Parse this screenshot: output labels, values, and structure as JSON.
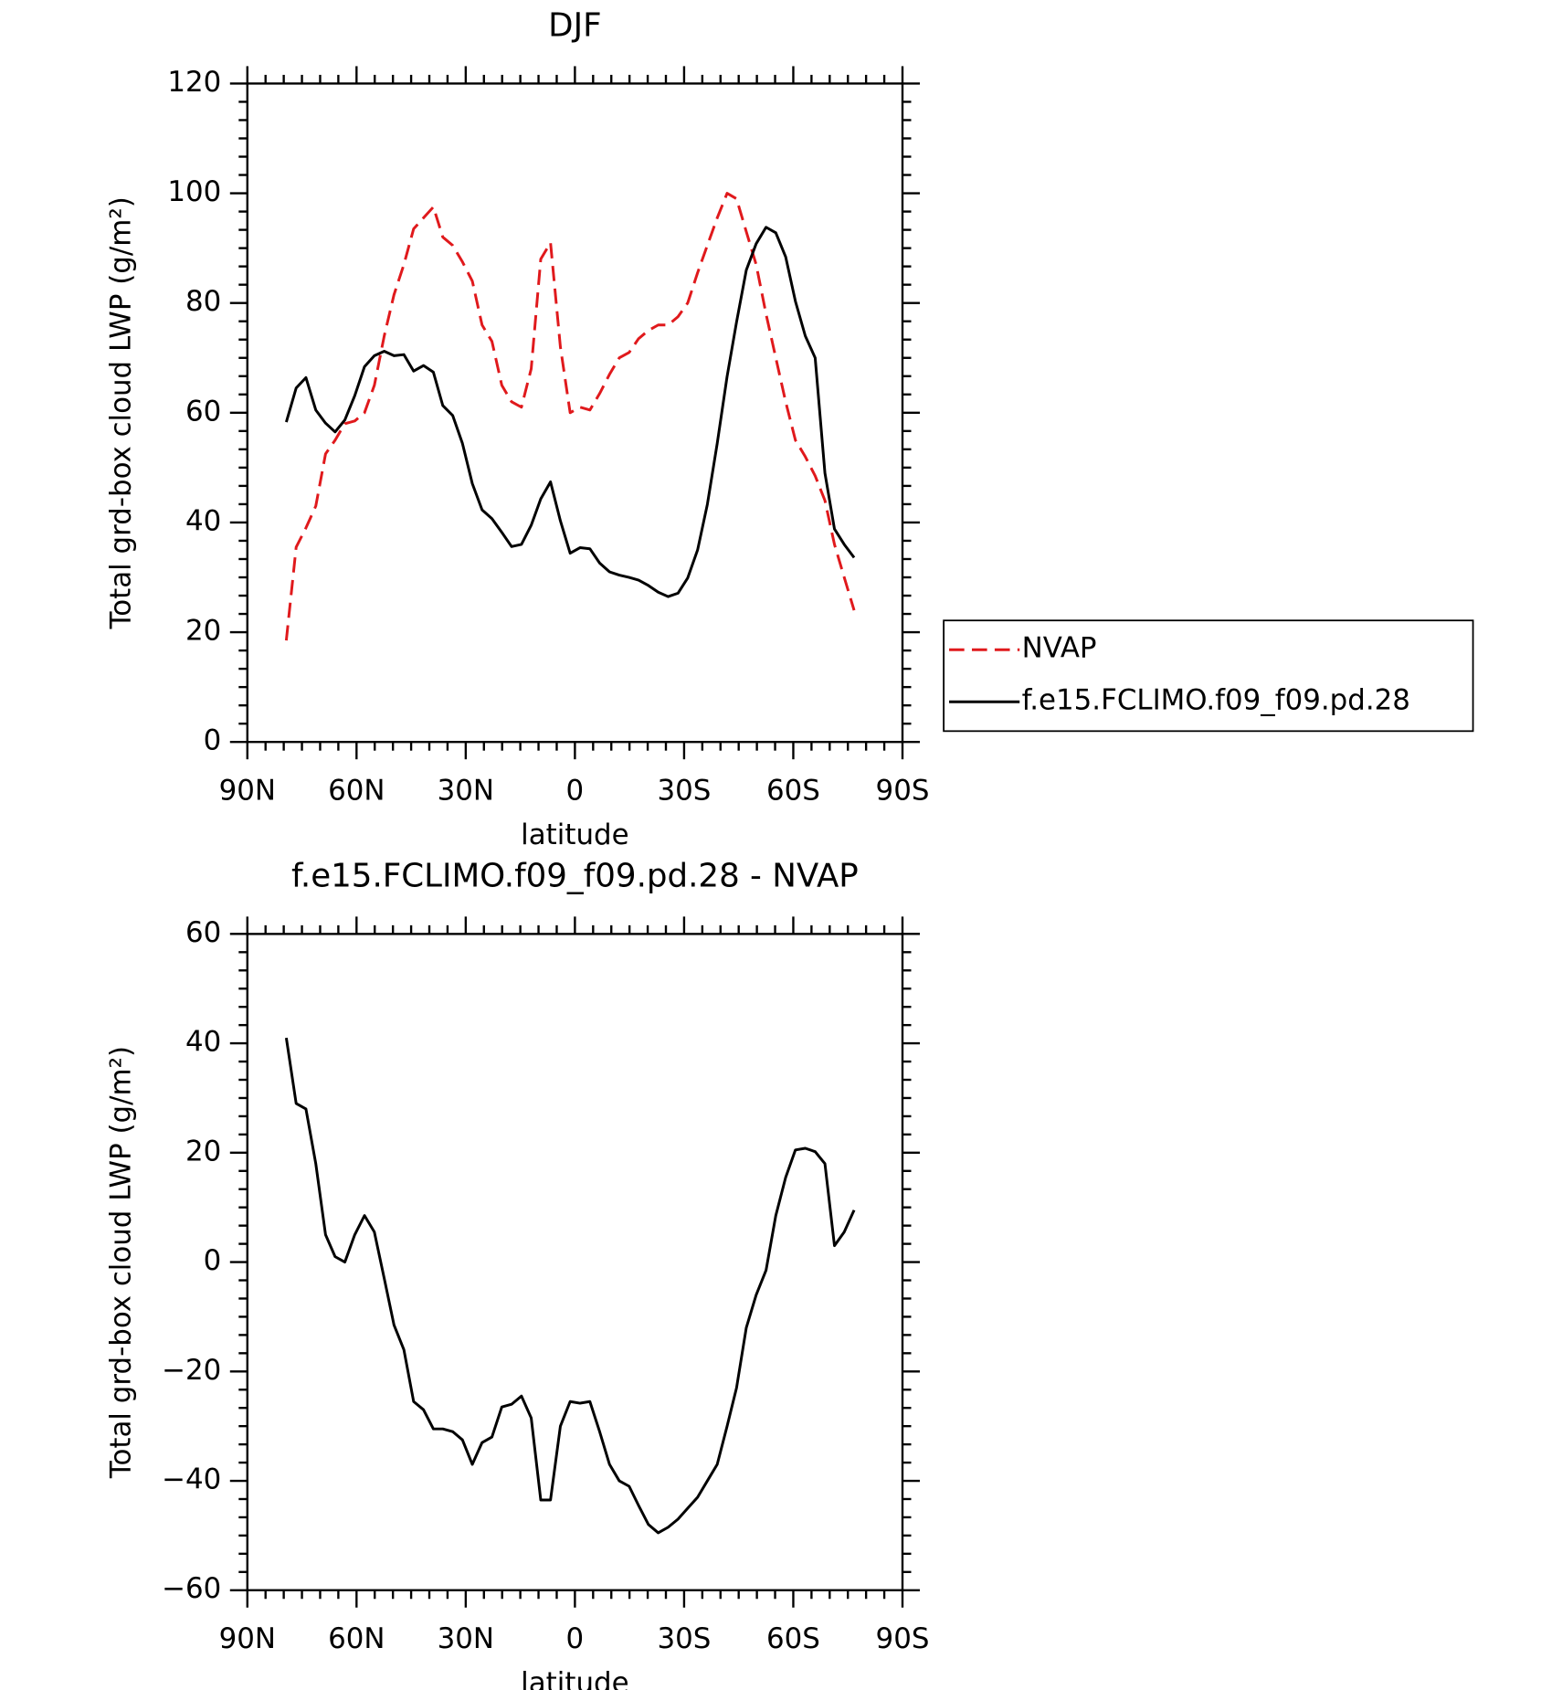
{
  "chart_data": [
    {
      "type": "line",
      "title": "DJF",
      "xlabel": "latitude",
      "ylabel": "Total grd-box cloud LWP (g/m²)",
      "xlim": [
        90,
        -90
      ],
      "ylim": [
        0,
        120
      ],
      "xticks": [
        {
          "value": 90,
          "label": "90N"
        },
        {
          "value": 60,
          "label": "60N"
        },
        {
          "value": 30,
          "label": "30N"
        },
        0,
        {
          "value": -30,
          "label": "30S"
        },
        {
          "value": -60,
          "label": "60S"
        },
        {
          "value": -90,
          "label": "90S"
        }
      ],
      "yticks": [
        0,
        20,
        40,
        60,
        80,
        100,
        120
      ],
      "legend": "outside right",
      "x": [
        79.3,
        76.6,
        73.9,
        71.2,
        68.5,
        65.9,
        63.2,
        60.5,
        57.8,
        55.1,
        52.4,
        49.7,
        47.0,
        44.3,
        41.6,
        38.9,
        36.3,
        33.6,
        30.9,
        28.2,
        25.5,
        22.8,
        20.1,
        17.4,
        14.7,
        12.0,
        9.4,
        6.7,
        4.0,
        1.3,
        -1.4,
        -4.1,
        -6.8,
        -9.5,
        -12.2,
        -14.9,
        -17.5,
        -20.2,
        -22.9,
        -25.6,
        -28.3,
        -31.0,
        -33.7,
        -36.4,
        -39.1,
        -41.8,
        -44.4,
        -47.1,
        -49.8,
        -52.5,
        -55.2,
        -57.9,
        -60.6,
        -63.3,
        -66.0,
        -68.7,
        -71.3,
        -74.0,
        -76.7
      ],
      "series": [
        {
          "name": "NVAP",
          "color": "#e0191c",
          "dash": true,
          "values": [
            18.5,
            35.5,
            39,
            43,
            52.5,
            55,
            58,
            58.5,
            60,
            65,
            74,
            81.5,
            87,
            93.5,
            95.5,
            97.5,
            92,
            90.5,
            87.5,
            84,
            76,
            73,
            65,
            62,
            61,
            68,
            88,
            91,
            72,
            60,
            61,
            60.5,
            63.5,
            67,
            70,
            71,
            73.5,
            75,
            76,
            76,
            77.5,
            80,
            85.5,
            90.5,
            95.5,
            100,
            99,
            93,
            87,
            78,
            70,
            62,
            55,
            52,
            48.5,
            44,
            36,
            30,
            24
          ]
        },
        {
          "name": "f.e15.FCLIMO.f09_f09.pd.28",
          "color": "#000000",
          "dash": false,
          "values": [
            58.3,
            64.5,
            66.4,
            60.5,
            58.1,
            56.5,
            58.7,
            63.1,
            68.4,
            70.4,
            71.2,
            70.4,
            70.6,
            67.6,
            68.6,
            67.4,
            61.3,
            59.5,
            54.4,
            47.1,
            42.3,
            40.7,
            38.2,
            35.6,
            36.0,
            39.5,
            44.3,
            47.4,
            40.3,
            34.4,
            35.4,
            35.2,
            32.6,
            31.0,
            30.4,
            30.0,
            29.5,
            28.5,
            27.3,
            26.5,
            27.1,
            29.9,
            35.0,
            43.3,
            54.4,
            66.6,
            76.5,
            86.0,
            90.8,
            93.8,
            92.8,
            88.4,
            80.3,
            74.0,
            70.0,
            49.0,
            38.8,
            36.0,
            33.6
          ]
        }
      ]
    },
    {
      "type": "line",
      "title": "f.e15.FCLIMO.f09_f09.pd.28 - NVAP",
      "xlabel": "latitude",
      "ylabel": "Total grd-box cloud LWP (g/m²)",
      "xlim": [
        90,
        -90
      ],
      "ylim": [
        -60,
        60
      ],
      "xticks": [
        {
          "value": 90,
          "label": "90N"
        },
        {
          "value": 60,
          "label": "60N"
        },
        {
          "value": 30,
          "label": "30N"
        },
        0,
        {
          "value": -30,
          "label": "30S"
        },
        {
          "value": -60,
          "label": "60S"
        },
        {
          "value": -90,
          "label": "90S"
        }
      ],
      "yticks": [
        {
          "value": -60,
          "label": "−60"
        },
        {
          "value": -40,
          "label": "−40"
        },
        {
          "value": -20,
          "label": "−20"
        },
        0,
        20,
        40,
        60
      ],
      "x": [
        79.3,
        76.6,
        73.9,
        71.2,
        68.5,
        65.9,
        63.2,
        60.5,
        57.8,
        55.1,
        52.4,
        49.7,
        47.0,
        44.3,
        41.6,
        38.9,
        36.3,
        33.6,
        30.9,
        28.2,
        25.5,
        22.8,
        20.1,
        17.4,
        14.7,
        12.0,
        9.4,
        6.7,
        4.0,
        1.3,
        -1.4,
        -4.1,
        -6.8,
        -9.5,
        -12.2,
        -14.9,
        -17.5,
        -20.2,
        -22.9,
        -25.6,
        -28.3,
        -31.0,
        -33.7,
        -36.4,
        -39.1,
        -41.8,
        -44.4,
        -47.1,
        -49.8,
        -52.5,
        -55.2,
        -57.9,
        -60.6,
        -63.3,
        -66.0,
        -68.7,
        -71.3,
        -74.0,
        -76.7
      ],
      "series": [
        {
          "color": "#000000",
          "dash": false,
          "values": [
            41,
            29,
            28,
            18,
            5,
            1,
            0,
            5,
            8.5,
            5.5,
            -3,
            -11.5,
            -16,
            -25.5,
            -27,
            -30.5,
            -30.5,
            -31,
            -32.5,
            -37,
            -33,
            -32,
            -26.5,
            -26,
            -24.5,
            -28.5,
            -43.5,
            -43.5,
            -30,
            -25.5,
            -25.8,
            -25.5,
            -31,
            -37,
            -40,
            -41,
            -44.5,
            -48,
            -49.5,
            -48.5,
            -47,
            -45,
            -43,
            -40,
            -37,
            -30,
            -23,
            -12,
            -6,
            -1.5,
            8.5,
            15.5,
            20.5,
            20.8,
            20.2,
            18,
            3,
            5.5,
            9.5
          ]
        }
      ]
    }
  ]
}
